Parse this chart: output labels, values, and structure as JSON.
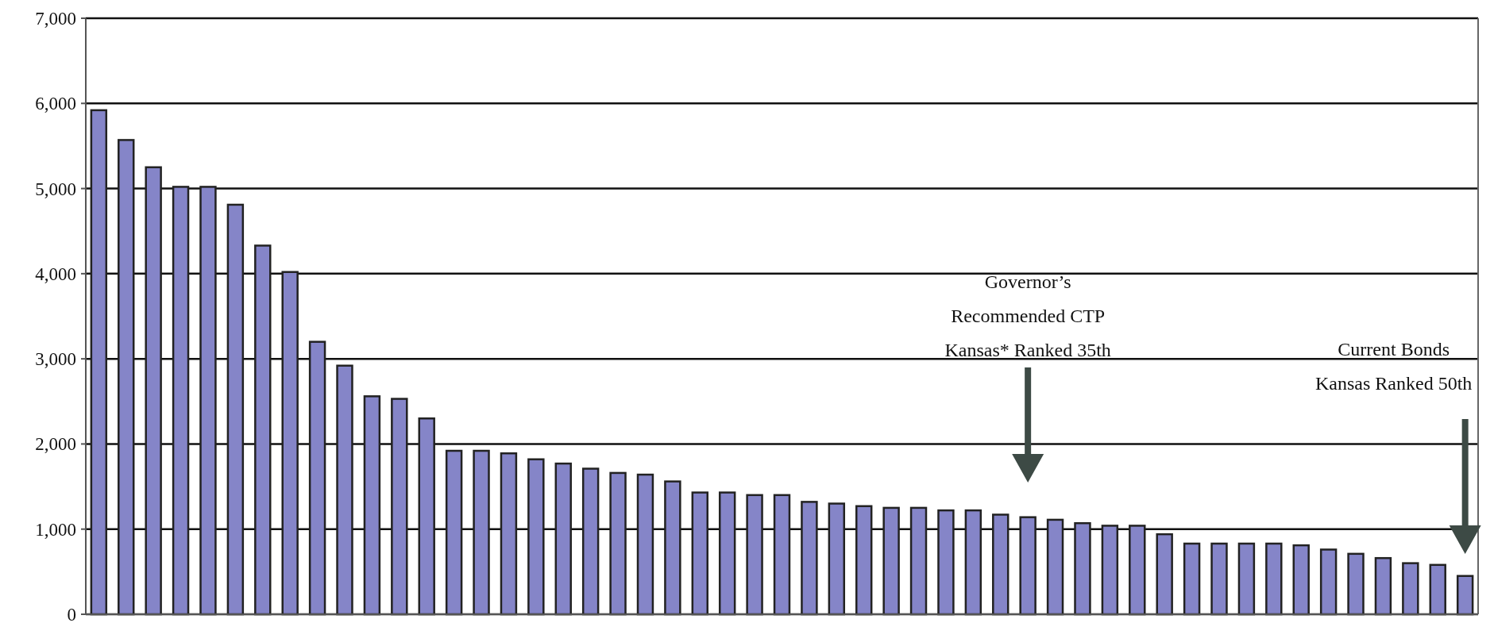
{
  "chart_data": {
    "type": "bar",
    "categories": [
      null,
      null,
      null,
      null,
      null,
      null,
      null,
      null,
      null,
      null,
      null,
      null,
      null,
      null,
      null,
      null,
      null,
      null,
      null,
      null,
      null,
      null,
      null,
      null,
      null,
      null,
      null,
      null,
      null,
      null,
      null,
      null,
      null,
      null,
      null,
      null,
      null,
      null,
      null,
      null,
      null,
      null,
      null,
      null,
      null,
      null,
      null,
      null,
      null,
      null,
      null
    ],
    "values": [
      5920,
      5570,
      5250,
      5020,
      5020,
      4810,
      4330,
      4020,
      3200,
      2920,
      2560,
      2530,
      2300,
      1920,
      1920,
      1890,
      1820,
      1770,
      1710,
      1660,
      1640,
      1560,
      1430,
      1430,
      1400,
      1400,
      1320,
      1300,
      1270,
      1250,
      1250,
      1220,
      1220,
      1170,
      1140,
      1110,
      1070,
      1040,
      1040,
      940,
      830,
      830,
      830,
      830,
      810,
      760,
      710,
      660,
      600,
      580,
      450
    ],
    "color": "#8585c8",
    "ylim": [
      0,
      7000
    ],
    "yticks": [
      {
        "value": 0,
        "label": "0"
      },
      {
        "value": 1000,
        "label": "1,000"
      },
      {
        "value": 2000,
        "label": "2,000"
      },
      {
        "value": 3000,
        "label": "3,000"
      },
      {
        "value": 4000,
        "label": "4,000"
      },
      {
        "value": 5000,
        "label": "5,000"
      },
      {
        "value": 6000,
        "label": "6,000"
      },
      {
        "value": 7000,
        "label": "7,000"
      }
    ],
    "grid": "y",
    "annotations": [
      "Governor’s\nRecommended CTP\nKansas* Ranked 35th",
      "Current Bonds\nKansas Ranked 50th"
    ]
  }
}
